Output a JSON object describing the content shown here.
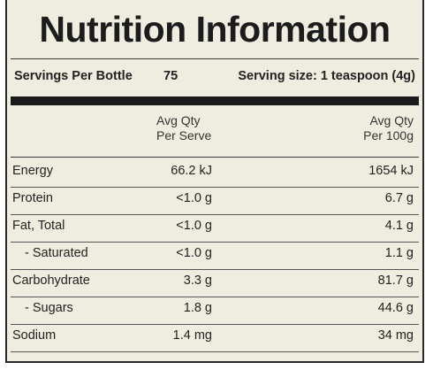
{
  "header": {
    "title": "Nutrition Information"
  },
  "servings": {
    "label": "Servings Per Bottle",
    "value": "75",
    "serving_size": "Serving size: 1 teaspoon (4g)"
  },
  "table": {
    "columns": [
      [
        "Avg Qty",
        "Per Serve"
      ],
      [
        "Avg Qty",
        "Per 100g"
      ]
    ],
    "rows": [
      [
        "Energy",
        "66.2 kJ",
        "1654 kJ"
      ],
      [
        "Protein",
        "<1.0 g",
        "6.7 g"
      ],
      [
        "Fat, Total",
        "<1.0 g",
        "4.1 g"
      ],
      [
        "- Saturated",
        "<1.0 g",
        "1.1 g"
      ],
      [
        "Carbohydrate",
        "3.3 g",
        "81.7 g"
      ],
      [
        "- Sugars",
        "1.8 g",
        "44.6 g"
      ],
      [
        "Sodium",
        "1.4 mg",
        "34 mg"
      ]
    ]
  }
}
